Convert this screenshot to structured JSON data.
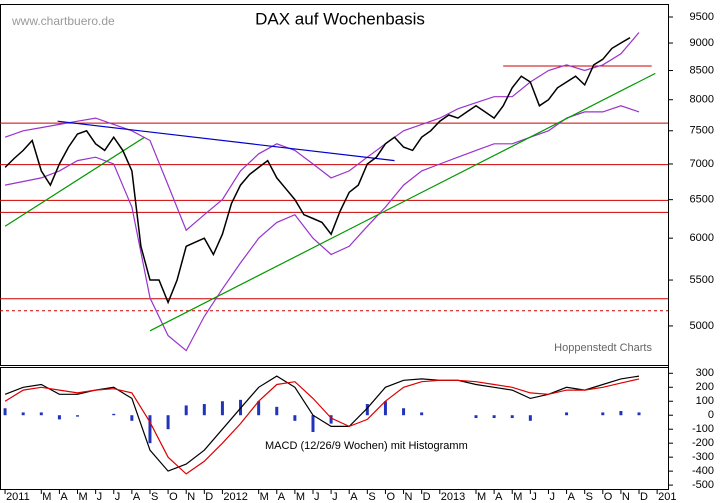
{
  "chart_data": [
    {
      "type": "line",
      "title": "DAX auf Wochenbasis",
      "watermark": "www.chartbuero.de",
      "source": "Hoppenstedt Charts",
      "log_scale": true,
      "xlim": [
        -0.28,
        36.6
      ],
      "ylim": [
        4610,
        9740
      ],
      "yticks": [
        5000,
        5500,
        6000,
        6500,
        7000,
        7500,
        8000,
        8500,
        9000,
        9500
      ],
      "x": [
        0,
        0.5,
        1,
        1.5,
        2,
        2.5,
        3,
        3.5,
        4,
        4.5,
        5,
        5.5,
        6,
        6.5,
        7,
        7.5,
        8,
        8.5,
        9,
        9.5,
        10,
        10.5,
        11,
        11.5,
        12,
        12.5,
        13,
        13.5,
        14,
        14.5,
        15,
        15.5,
        16,
        16.5,
        17,
        17.5,
        18,
        18.5,
        19,
        19.5,
        20,
        20.5,
        21,
        21.5,
        22,
        22.5,
        23,
        23.5,
        24,
        24.5,
        25,
        25.5,
        26,
        26.5,
        27,
        27.5,
        28,
        28.5,
        29,
        29.5,
        30,
        30.5,
        31,
        31.5,
        32,
        32.5,
        33,
        33.5,
        34,
        34.5
      ],
      "series": [
        {
          "color": "#000000",
          "values": [
            6950,
            7080,
            7200,
            7350,
            6900,
            6700,
            7000,
            7250,
            7450,
            7500,
            7300,
            7200,
            7400,
            7200,
            6900,
            5900,
            5500,
            5500,
            5250,
            5500,
            5900,
            5950,
            6000,
            5800,
            6050,
            6450,
            6700,
            6850,
            6950,
            7050,
            6800,
            6650,
            6500,
            6300,
            6250,
            6200,
            6050,
            6350,
            6600,
            6700,
            7000,
            7100,
            7300,
            7400,
            7250,
            7200,
            7400,
            7500,
            7650,
            7750,
            7700,
            7800,
            7900,
            7800,
            7700,
            7900,
            8200,
            8400,
            8300,
            7900,
            8000,
            8200,
            8300,
            8400,
            8250,
            8600,
            8700,
            8900,
            9000,
            9100
          ]
        }
      ],
      "bands": {
        "color": "#9933cc",
        "x": [
          0,
          1,
          2,
          3,
          4,
          5,
          6,
          7,
          8,
          9,
          10,
          11,
          12,
          13,
          14,
          15,
          16,
          17,
          18,
          19,
          20,
          21,
          22,
          23,
          24,
          25,
          26,
          27,
          28,
          29,
          30,
          31,
          32,
          33,
          34,
          35
        ],
        "upper": [
          7400,
          7500,
          7550,
          7600,
          7650,
          7700,
          7600,
          7500,
          7350,
          6700,
          6100,
          6300,
          6500,
          6900,
          7150,
          7300,
          7200,
          7000,
          6800,
          6900,
          7100,
          7300,
          7500,
          7600,
          7700,
          7850,
          7950,
          8050,
          8050,
          8300,
          8500,
          8600,
          8500,
          8600,
          8800,
          9200
        ],
        "lower": [
          6700,
          6750,
          6800,
          6900,
          7050,
          7100,
          7000,
          6400,
          5300,
          4900,
          4750,
          5100,
          5400,
          5700,
          6000,
          6200,
          6300,
          6000,
          5800,
          5900,
          6150,
          6400,
          6700,
          6900,
          7000,
          7100,
          7200,
          7300,
          7300,
          7400,
          7500,
          7700,
          7800,
          7800,
          7900,
          7800
        ]
      },
      "hlines": [
        {
          "value": 8580,
          "x": [
            27.5,
            35.7
          ],
          "color": "#cc0000",
          "dashed": false
        },
        {
          "value": 7620,
          "x": [
            -0.28,
            36.6
          ],
          "color": "#cc0000",
          "dashed": false
        },
        {
          "value": 6990,
          "x": [
            -0.28,
            36.6
          ],
          "color": "#cc0000",
          "dashed": false
        },
        {
          "value": 6490,
          "x": [
            -0.28,
            36.6
          ],
          "color": "#cc0000",
          "dashed": false
        },
        {
          "value": 6330,
          "x": [
            -0.28,
            36.6
          ],
          "color": "#cc0000",
          "dashed": false
        },
        {
          "value": 5290,
          "x": [
            -0.28,
            36.6
          ],
          "color": "#cc0000",
          "dashed": false
        },
        {
          "value": 5160,
          "x": [
            -0.28,
            36.6
          ],
          "color": "#cc0000",
          "dashed": true
        }
      ],
      "trendlines": [
        {
          "x": [
            2.9,
            21.5
          ],
          "y": [
            7650,
            7050
          ],
          "color": "#0000cc"
        },
        {
          "x": [
            8.0,
            35.9
          ],
          "y": [
            4950,
            8450
          ],
          "color": "#009900"
        },
        {
          "x": [
            0,
            7.7
          ],
          "y": [
            6150,
            7400
          ],
          "color": "#009900"
        }
      ]
    },
    {
      "type": "macd",
      "label": "MACD (12/26/9 Wochen) mit Histogramm",
      "xlim": [
        -0.28,
        36.6
      ],
      "ylim": [
        -535,
        345
      ],
      "yticks": [
        300,
        200,
        100,
        0,
        -100,
        -200,
        -300,
        -400,
        -500
      ],
      "xticks": [
        {
          "value": 0,
          "label": "2011"
        },
        {
          "value": 2,
          "label": "M"
        },
        {
          "value": 3,
          "label": "A"
        },
        {
          "value": 4,
          "label": "M"
        },
        {
          "value": 5,
          "label": "J"
        },
        {
          "value": 6,
          "label": "J"
        },
        {
          "value": 7,
          "label": "A"
        },
        {
          "value": 8,
          "label": "S"
        },
        {
          "value": 9,
          "label": "O"
        },
        {
          "value": 10,
          "label": "N"
        },
        {
          "value": 11,
          "label": "D"
        },
        {
          "value": 12,
          "label": "2012"
        },
        {
          "value": 14,
          "label": "M"
        },
        {
          "value": 15,
          "label": "A"
        },
        {
          "value": 16,
          "label": "M"
        },
        {
          "value": 17,
          "label": "J"
        },
        {
          "value": 18,
          "label": "J"
        },
        {
          "value": 19,
          "label": "A"
        },
        {
          "value": 20,
          "label": "S"
        },
        {
          "value": 21,
          "label": "O"
        },
        {
          "value": 22,
          "label": "N"
        },
        {
          "value": 23,
          "label": "D"
        },
        {
          "value": 24,
          "label": "2013"
        },
        {
          "value": 26,
          "label": "M"
        },
        {
          "value": 27,
          "label": "A"
        },
        {
          "value": 28,
          "label": "M"
        },
        {
          "value": 29,
          "label": "J"
        },
        {
          "value": 30,
          "label": "J"
        },
        {
          "value": 31,
          "label": "A"
        },
        {
          "value": 32,
          "label": "S"
        },
        {
          "value": 33,
          "label": "O"
        },
        {
          "value": 34,
          "label": "N"
        },
        {
          "value": 35,
          "label": "D"
        },
        {
          "value": 36,
          "label": "201"
        }
      ],
      "x": [
        0,
        1,
        2,
        3,
        4,
        5,
        6,
        7,
        8,
        9,
        10,
        11,
        12,
        13,
        14,
        15,
        16,
        17,
        18,
        19,
        20,
        21,
        22,
        23,
        24,
        25,
        26,
        27,
        28,
        29,
        30,
        31,
        32,
        33,
        34,
        35
      ],
      "series": [
        {
          "color": "#000000",
          "values": [
            150,
            200,
            220,
            150,
            150,
            180,
            200,
            120,
            -250,
            -400,
            -350,
            -250,
            -100,
            50,
            200,
            280,
            200,
            0,
            -80,
            -80,
            50,
            200,
            250,
            260,
            250,
            250,
            220,
            200,
            180,
            120,
            150,
            200,
            180,
            220,
            260,
            280
          ]
        },
        {
          "color": "#dd0000",
          "values": [
            100,
            180,
            200,
            180,
            160,
            180,
            190,
            160,
            -50,
            -300,
            -420,
            -330,
            -200,
            -60,
            100,
            220,
            240,
            120,
            -20,
            -80,
            -30,
            100,
            200,
            240,
            250,
            250,
            240,
            220,
            200,
            160,
            150,
            180,
            180,
            200,
            230,
            260
          ]
        }
      ],
      "histogram": {
        "color": "#2233bb",
        "values": [
          50,
          20,
          20,
          -30,
          -10,
          0,
          10,
          -40,
          -200,
          -100,
          70,
          80,
          100,
          110,
          100,
          60,
          -40,
          -120,
          -60,
          0,
          80,
          100,
          50,
          20,
          0,
          0,
          -20,
          -20,
          -20,
          -40,
          0,
          20,
          0,
          20,
          30,
          20
        ]
      }
    }
  ]
}
